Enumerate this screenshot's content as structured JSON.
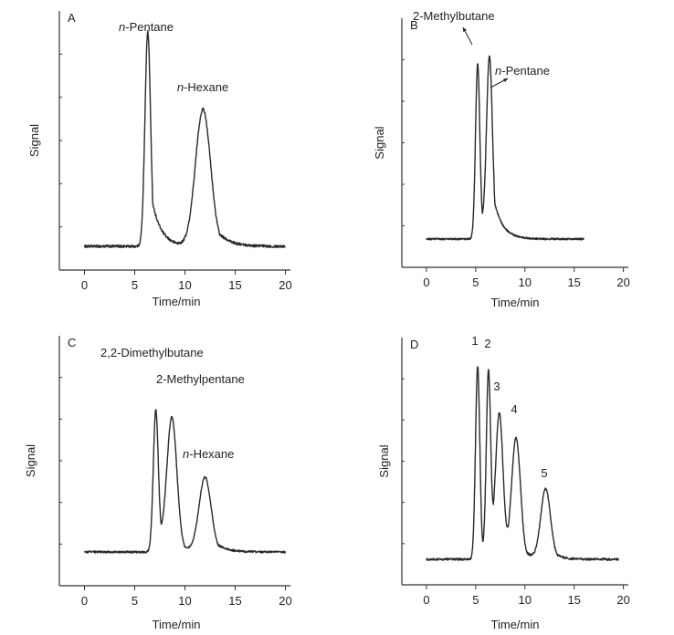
{
  "chart_data": [
    {
      "id": "A",
      "type": "line",
      "panel_label": "A",
      "xlabel": "Time/min",
      "ylabel": "Signal",
      "xlim": [
        -2.5,
        20.5
      ],
      "ylim": [
        0,
        1
      ],
      "xticks": [
        0,
        5,
        10,
        15,
        20
      ],
      "baseline": 0.05,
      "noise": 0.006,
      "peaks": [
        {
          "rt": 6.3,
          "height": 0.97,
          "width": 0.28,
          "tail": 0.9,
          "label": "n-Pentane",
          "label_prefix": "n",
          "label_rest": "-Pentane"
        },
        {
          "rt": 11.8,
          "height": 0.62,
          "width": 0.75,
          "tail": 1.2,
          "label": "n-Hexane",
          "label_prefix": "n",
          "label_rest": "-Hexane"
        }
      ],
      "x_range": [
        0,
        20
      ]
    },
    {
      "id": "B",
      "type": "line",
      "panel_label": "B",
      "xlabel": "Time/min",
      "ylabel": "Signal",
      "xlim": [
        -2.5,
        20.5
      ],
      "ylim": [
        0,
        1
      ],
      "xticks": [
        0,
        5,
        10,
        15,
        20
      ],
      "baseline": 0.05,
      "noise": 0.004,
      "peaks": [
        {
          "rt": 5.2,
          "height": 0.82,
          "width": 0.22,
          "tail": 0.35,
          "label": "2-Methylbutane"
        },
        {
          "rt": 6.4,
          "height": 0.85,
          "width": 0.3,
          "tail": 0.9,
          "label": "n-Pentane",
          "label_prefix": "n",
          "label_rest": "-Pentane"
        }
      ],
      "x_range": [
        0,
        16
      ]
    },
    {
      "id": "C",
      "type": "line",
      "panel_label": "C",
      "xlabel": "Time/min",
      "ylabel": "Signal",
      "xlim": [
        -2.5,
        20.5
      ],
      "ylim": [
        0,
        1
      ],
      "xticks": [
        0,
        5,
        10,
        15,
        20
      ],
      "baseline": 0.05,
      "noise": 0.005,
      "peaks": [
        {
          "rt": 7.1,
          "height": 0.72,
          "width": 0.25,
          "tail": 0.4,
          "label": "2,2-Dimethylbutane"
        },
        {
          "rt": 8.7,
          "height": 0.68,
          "width": 0.5,
          "tail": 0.6,
          "label": "2-Methylpentane"
        },
        {
          "rt": 12.0,
          "height": 0.38,
          "width": 0.6,
          "tail": 1.0,
          "label": "n-Hexane",
          "label_prefix": "n",
          "label_rest": "-Hexane"
        }
      ],
      "x_range": [
        0,
        20
      ]
    },
    {
      "id": "D",
      "type": "line",
      "panel_label": "D",
      "xlabel": "Time/min",
      "ylabel": "Signal",
      "xlim": [
        -2.5,
        20.5
      ],
      "ylim": [
        0,
        1
      ],
      "xticks": [
        0,
        5,
        10,
        15,
        20
      ],
      "baseline": 0.05,
      "noise": 0.005,
      "peaks": [
        {
          "rt": 5.2,
          "height": 0.88,
          "width": 0.22,
          "tail": 0.3,
          "label": "1"
        },
        {
          "rt": 6.3,
          "height": 0.85,
          "width": 0.22,
          "tail": 0.3,
          "label": "2"
        },
        {
          "rt": 7.4,
          "height": 0.66,
          "width": 0.38,
          "tail": 0.45,
          "label": "3"
        },
        {
          "rt": 9.1,
          "height": 0.55,
          "width": 0.45,
          "tail": 0.6,
          "label": "4"
        },
        {
          "rt": 12.1,
          "height": 0.32,
          "width": 0.5,
          "tail": 0.7,
          "label": "5"
        }
      ],
      "x_range": [
        0,
        19.5
      ]
    }
  ]
}
